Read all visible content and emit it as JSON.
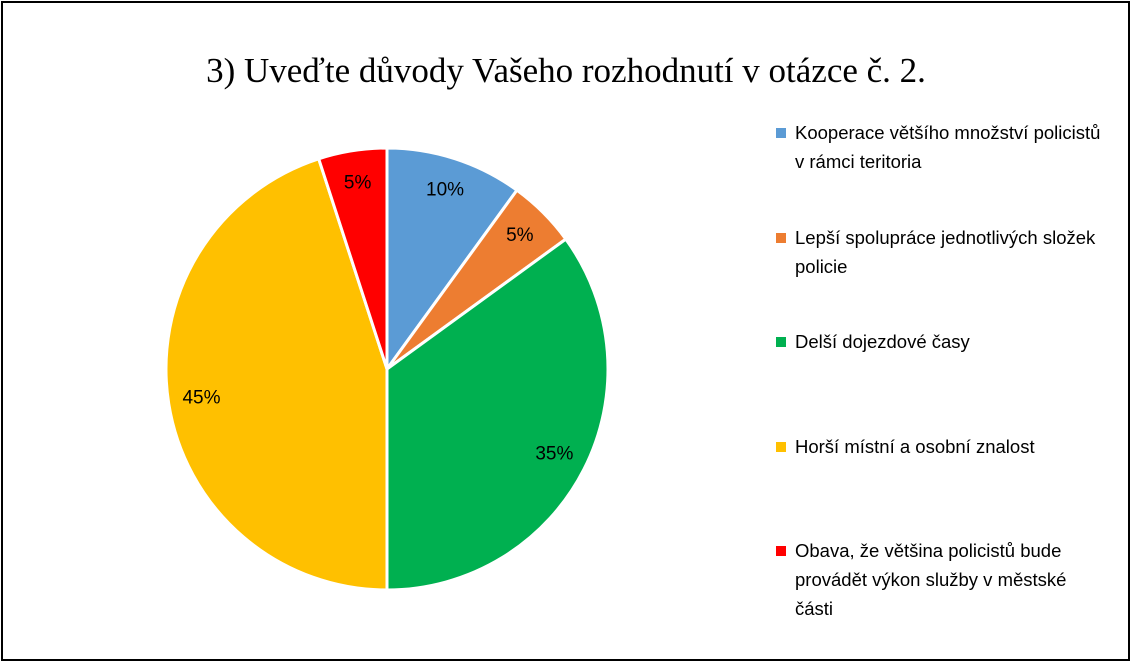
{
  "chart_data": {
    "type": "pie",
    "title": "3) Uveďte důvody Vašeho rozhodnutí v otázce č. 2.",
    "categories": [
      "Kooperace většího množství policistů v rámci teritoria",
      "Lepší spolupráce jednotlivých složek policie",
      "Delší dojezdové časy",
      "Horší místní a osobní znalost",
      "Obava, že většina policistů bude provádět výkon služby v městské části"
    ],
    "values": [
      10,
      5,
      35,
      45,
      5
    ],
    "value_labels": [
      "10%",
      "5%",
      "35%",
      "45%",
      "5%"
    ],
    "colors": [
      "#5b9bd5",
      "#ed7d31",
      "#00b050",
      "#ffc000",
      "#ff0000"
    ],
    "legend": "right"
  }
}
